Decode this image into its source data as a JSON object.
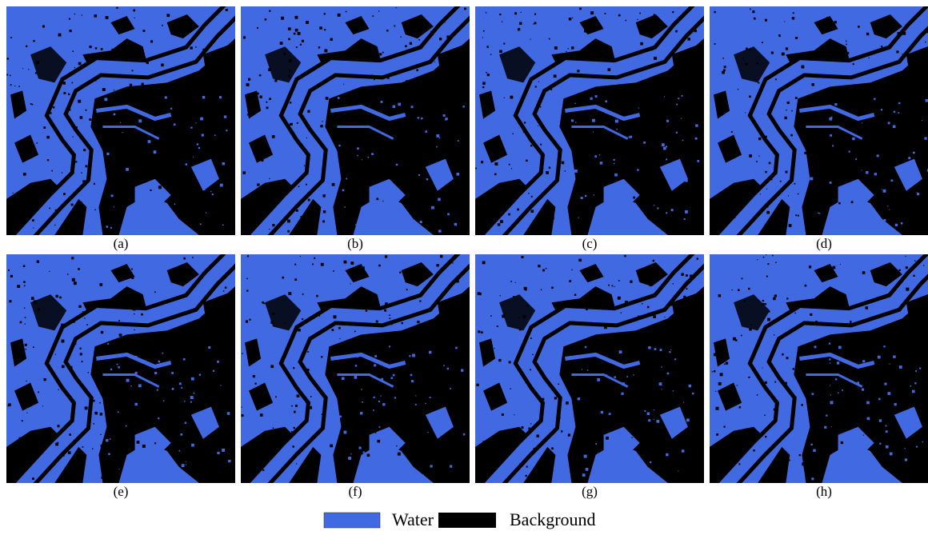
{
  "panels": [
    {
      "label": "(a)"
    },
    {
      "label": "(b)"
    },
    {
      "label": "(c)"
    },
    {
      "label": "(d)"
    },
    {
      "label": "(e)"
    },
    {
      "label": "(f)"
    },
    {
      "label": "(g)"
    },
    {
      "label": "(h)"
    }
  ],
  "legend": [
    {
      "label": "Water"
    },
    {
      "label": "Background"
    }
  ]
}
